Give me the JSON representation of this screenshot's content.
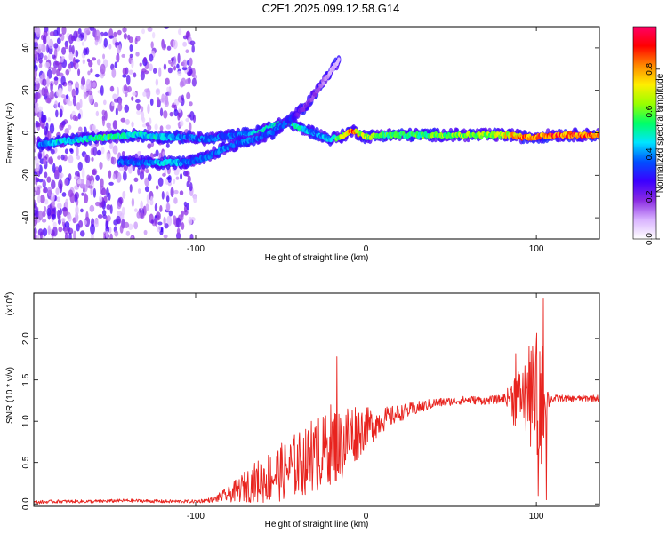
{
  "title": "C2E1.2025.099.12.58.G14",
  "colorbar": {
    "label": "Normalized spectral amplitude",
    "ticks": [
      "0.0",
      "0.2",
      "0.4",
      "0.6",
      "0.8"
    ],
    "range": [
      0,
      1
    ],
    "colors": [
      "#ffffff",
      "#d9b3ff",
      "#8a2be2",
      "#3b00ff",
      "#0050ff",
      "#00e5ff",
      "#00ff66",
      "#99ff00",
      "#ffee00",
      "#ff8800",
      "#ff0000",
      "#ff0066"
    ]
  },
  "chart_data": [
    {
      "type": "heatmap",
      "title": "",
      "xlabel": "Height of straight line (km)",
      "ylabel": "Frequency (Hz)",
      "xlim": [
        -195,
        137
      ],
      "ylim": [
        -50,
        50
      ],
      "x_ticks": [
        -100,
        0,
        100
      ],
      "x_tick_labels": [
        "-100",
        "0",
        "100"
      ],
      "y_ticks": [
        -40,
        -20,
        0,
        20,
        40
      ],
      "y_tick_labels": [
        "-40",
        "-20",
        "0",
        "20",
        "40"
      ],
      "tracks": [
        {
          "name": "",
          "points": [
            [
              -192,
              -6
            ],
            [
              -180,
              -4
            ],
            [
              -165,
              -3
            ],
            [
              -150,
              -2
            ],
            [
              -135,
              -1
            ],
            [
              -120,
              -2
            ],
            [
              -105,
              -2
            ],
            [
              -95,
              -3
            ],
            [
              -85,
              -2
            ],
            [
              -75,
              -1
            ],
            [
              -65,
              0
            ],
            [
              -55,
              3
            ],
            [
              -45,
              5
            ],
            [
              -38,
              2
            ],
            [
              -30,
              0
            ],
            [
              -22,
              -3
            ],
            [
              -15,
              -2
            ],
            [
              -8,
              1
            ],
            [
              0,
              -2
            ],
            [
              10,
              -1
            ],
            [
              30,
              -1
            ],
            [
              50,
              -1
            ],
            [
              70,
              -1
            ],
            [
              85,
              -1
            ],
            [
              92,
              -2
            ],
            [
              100,
              -2
            ],
            [
              110,
              -1
            ],
            [
              137,
              -1
            ]
          ],
          "amplitude": [
            0.4,
            0.5,
            0.5,
            0.6,
            0.5,
            0.5,
            0.4,
            0.4,
            0.4,
            0.4,
            0.5,
            0.5,
            0.6,
            0.5,
            0.4,
            0.5,
            0.7,
            0.9,
            0.7,
            0.6,
            0.6,
            0.7,
            0.7,
            0.8,
            0.9,
            0.95,
            0.95,
            0.95
          ]
        },
        {
          "name": "",
          "points": [
            [
              -145,
              -14
            ],
            [
              -130,
              -14
            ],
            [
              -115,
              -14
            ],
            [
              -105,
              -14
            ],
            [
              -95,
              -12
            ],
            [
              -85,
              -8
            ],
            [
              -75,
              -5
            ],
            [
              -65,
              -3
            ],
            [
              -55,
              0
            ],
            [
              -48,
              4
            ],
            [
              -42,
              8
            ],
            [
              -36,
              12
            ],
            [
              -30,
              18
            ],
            [
              -25,
              24
            ],
            [
              -20,
              30
            ],
            [
              -16,
              34
            ]
          ],
          "amplitude": [
            0.4,
            0.4,
            0.5,
            0.4,
            0.4,
            0.4,
            0.4,
            0.4,
            0.4,
            0.4,
            0.3,
            0.2,
            0.2,
            0.15,
            0.1,
            0.1
          ]
        }
      ]
    },
    {
      "type": "line",
      "title": "",
      "xlabel": "Height of straight line (km)",
      "ylabel": "SNR (10 * v/v)",
      "y_multiplier_label": "(x10",
      "y_multiplier_exp": "4",
      "y_multiplier_close": ")",
      "xlim": [
        -195,
        137
      ],
      "ylim": [
        -0.03,
        2.55
      ],
      "x_ticks": [
        -100,
        0,
        100
      ],
      "x_tick_labels": [
        "-100",
        "0",
        "100"
      ],
      "y_ticks": [
        0.0,
        0.5,
        1.0,
        1.5,
        2.0
      ],
      "y_tick_labels": [
        "0.0",
        "0.5",
        "1.0",
        "1.5",
        "2.0"
      ],
      "color": "#e8231e",
      "series": [
        {
          "name": "",
          "x": [
            -195,
            -180,
            -160,
            -140,
            -120,
            -100,
            -90,
            -80,
            -70,
            -60,
            -50,
            -40,
            -30,
            -25,
            -20,
            -15,
            -10,
            -5,
            0,
            10,
            20,
            30,
            40,
            50,
            60,
            70,
            80,
            85,
            88,
            90,
            93,
            95,
            98,
            100,
            102,
            104,
            106,
            108,
            110,
            115,
            120,
            130,
            137
          ],
          "y": [
            0.02,
            0.03,
            0.03,
            0.04,
            0.03,
            0.03,
            0.05,
            0.12,
            0.22,
            0.3,
            0.38,
            0.48,
            0.55,
            0.62,
            0.75,
            0.68,
            0.82,
            0.88,
            0.92,
            1.02,
            1.1,
            1.16,
            1.22,
            1.24,
            1.26,
            1.25,
            1.27,
            1.3,
            1.28,
            1.32,
            1.3,
            1.3,
            1.25,
            1.2,
            1.3,
            1.25,
            1.25,
            1.28,
            1.27,
            1.28,
            1.27,
            1.28,
            1.28
          ],
          "noise_amplitude": [
            0.02,
            0.02,
            0.02,
            0.02,
            0.02,
            0.02,
            0.03,
            0.1,
            0.2,
            0.3,
            0.35,
            0.4,
            0.42,
            0.45,
            0.5,
            0.45,
            0.45,
            0.35,
            0.25,
            0.15,
            0.1,
            0.08,
            0.06,
            0.05,
            0.05,
            0.05,
            0.05,
            0.15,
            0.5,
            0.3,
            0.4,
            0.6,
            0.7,
            0.9,
            1.0,
            0.6,
            0.3,
            0.08,
            0.05,
            0.04,
            0.04,
            0.04,
            0.04
          ]
        }
      ],
      "peaks": [
        [
          -17,
          1.78
        ],
        [
          -32,
          1.0
        ],
        [
          -28,
          1.03
        ],
        [
          88,
          1.82
        ],
        [
          97,
          1.85
        ],
        [
          104,
          2.48
        ],
        [
          106,
          0.05
        ],
        [
          101,
          0.1
        ]
      ]
    }
  ]
}
